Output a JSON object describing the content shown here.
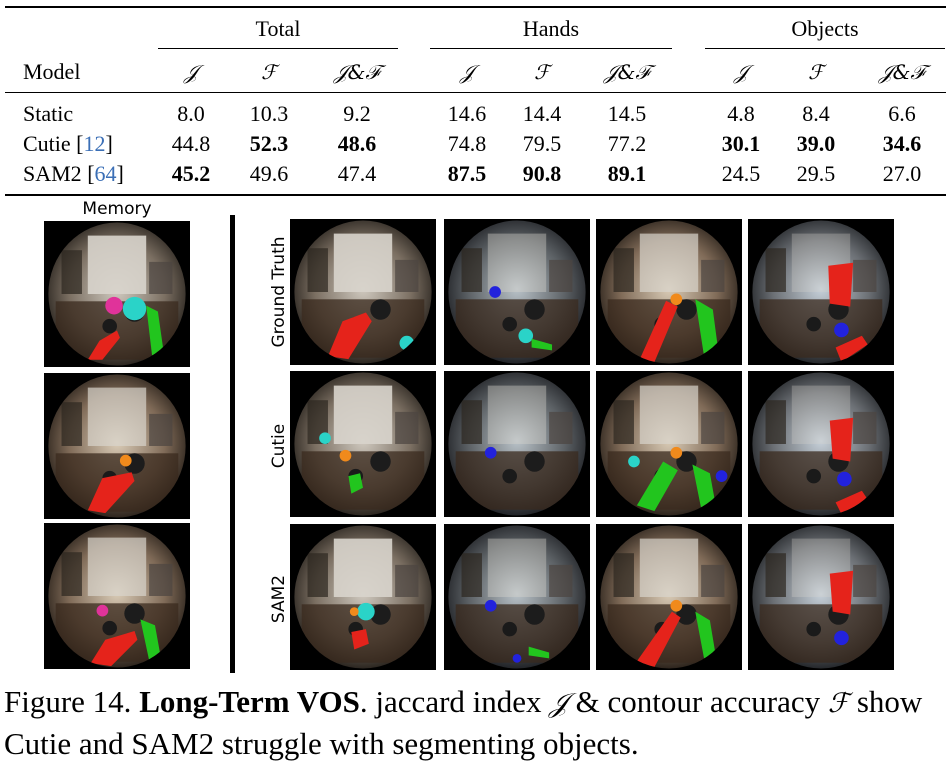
{
  "table": {
    "groups": [
      "Total",
      "Hands",
      "Objects"
    ],
    "model_header": "Model",
    "metric_headers": [
      "𝒥",
      "ℱ",
      "𝒥&ℱ"
    ],
    "rows": [
      {
        "model": "Static",
        "cite": "",
        "values": [
          "8.0",
          "10.3",
          "9.2",
          "14.6",
          "14.4",
          "14.5",
          "4.8",
          "8.4",
          "6.6"
        ],
        "bold": [
          false,
          false,
          false,
          false,
          false,
          false,
          false,
          false,
          false
        ]
      },
      {
        "model": "Cutie",
        "cite": "12",
        "values": [
          "44.8",
          "52.3",
          "48.6",
          "74.8",
          "79.5",
          "77.2",
          "30.1",
          "39.0",
          "34.6"
        ],
        "bold": [
          false,
          true,
          true,
          false,
          false,
          false,
          true,
          true,
          true
        ]
      },
      {
        "model": "SAM2",
        "cite": "64",
        "values": [
          "45.2",
          "49.6",
          "47.4",
          "87.5",
          "90.8",
          "89.1",
          "24.5",
          "29.5",
          "27.0"
        ],
        "bold": [
          true,
          false,
          false,
          true,
          true,
          true,
          false,
          false,
          false
        ]
      }
    ]
  },
  "figure": {
    "memory_label": "Memory",
    "row_labels": [
      "Ground Truth",
      "Cutie",
      "SAM2"
    ]
  },
  "caption": {
    "prefix": "Figure 14. ",
    "title": "Long-Term VOS",
    "text_1": ". jaccard index ",
    "sym_j": "𝒥",
    "text_2": " & contour accuracy ",
    "sym_f": "ℱ",
    "text_3": " show Cutie and SAM2 struggle with segmenting objects."
  },
  "colors": {
    "hand_red": "#e5231b",
    "hand_green": "#22c51e",
    "object_cyan": "#2ad3c8",
    "object_blue": "#2222dd",
    "object_magenta": "#e0339a",
    "object_orange": "#f08a1c",
    "citation": "#3b6fb6"
  }
}
